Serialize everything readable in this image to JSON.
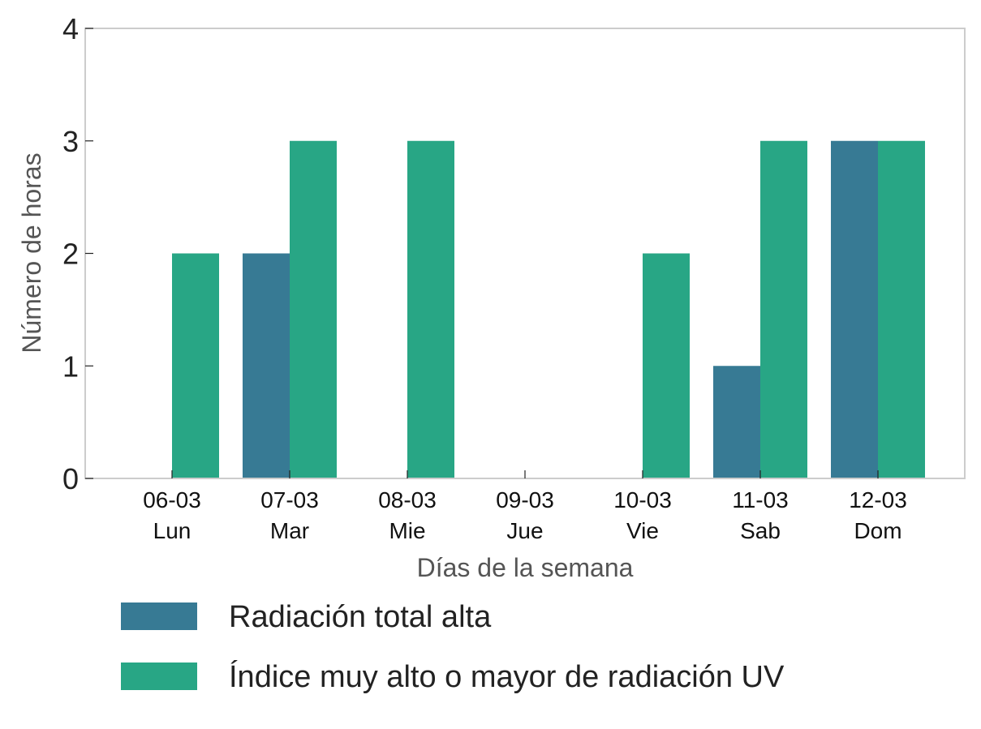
{
  "chart_data": {
    "type": "bar",
    "categories": [
      {
        "date": "06-03",
        "day": "Lun"
      },
      {
        "date": "07-03",
        "day": "Mar"
      },
      {
        "date": "08-03",
        "day": "Mie"
      },
      {
        "date": "09-03",
        "day": "Jue"
      },
      {
        "date": "10-03",
        "day": "Vie"
      },
      {
        "date": "11-03",
        "day": "Sab"
      },
      {
        "date": "12-03",
        "day": "Dom"
      }
    ],
    "series": [
      {
        "name": "Radiación total alta",
        "color": "#377a94",
        "values": [
          0,
          2,
          0,
          0,
          0,
          1,
          3
        ]
      },
      {
        "name": "Índice muy alto o mayor de radiación UV",
        "color": "#28a685",
        "values": [
          2,
          3,
          3,
          0,
          2,
          3,
          3
        ]
      }
    ],
    "xlabel": "Días de la semana",
    "ylabel": "Número de horas",
    "ylim": [
      0,
      4
    ],
    "yticks": [
      0,
      1,
      2,
      3,
      4
    ],
    "grid": false,
    "legend_position": "bottom"
  }
}
